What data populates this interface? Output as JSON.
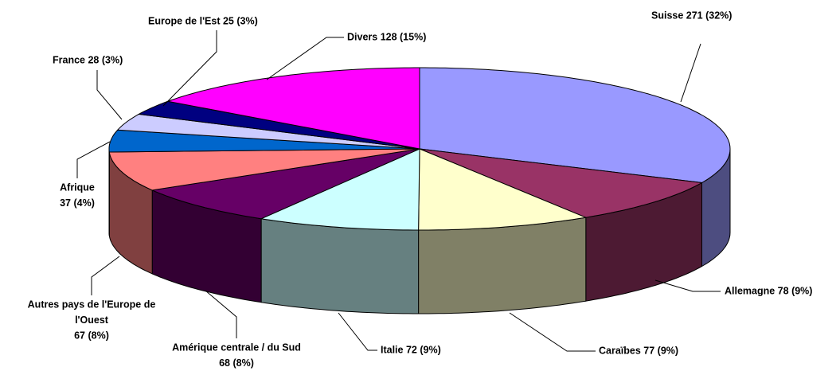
{
  "chart_data": {
    "type": "pie3d",
    "categories": [
      "Suisse",
      "Allemagne",
      "Caraïbes",
      "Italie",
      "Amérique centrale / du Sud",
      "Autres pays de l'Europe de l'Ouest",
      "Afrique",
      "France",
      "Europe de l'Est",
      "Divers"
    ],
    "values": [
      271,
      78,
      77,
      72,
      68,
      67,
      37,
      28,
      25,
      128
    ],
    "labels": [
      [
        "Suisse 271 (32%)"
      ],
      [
        "Allemagne 78 (9%)"
      ],
      [
        "Caraïbes 77 (9%)"
      ],
      [
        "Italie 72 (9%)"
      ],
      [
        "Amérique centrale / du Sud",
        "68 (8%)"
      ],
      [
        "Autres pays de l'Europe de",
        "l'Ouest",
        "67 (8%)"
      ],
      [
        "Afrique",
        "37 (4%)"
      ],
      [
        "France 28 (3%)"
      ],
      [
        "Europe de l'Est 25 (3%)"
      ],
      [
        "Divers 128 (15%)"
      ]
    ],
    "colors": [
      "#9999ff",
      "#993366",
      "#ffffcc",
      "#ccffff",
      "#660066",
      "#ff8080",
      "#0066cc",
      "#ccccff",
      "#000080",
      "#ff00ff"
    ]
  }
}
